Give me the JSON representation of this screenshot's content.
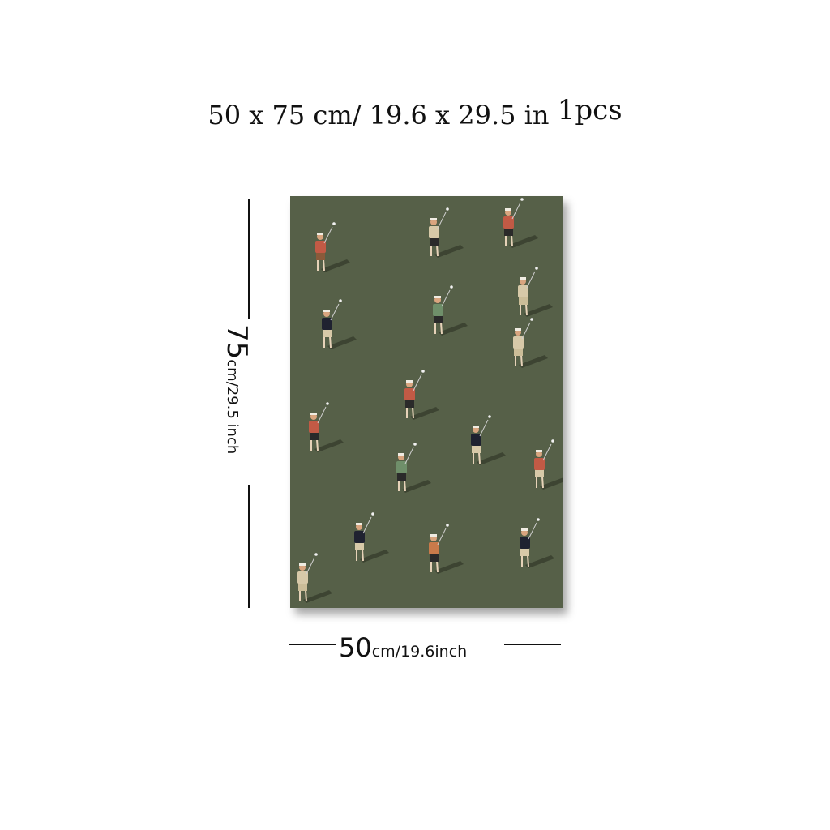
{
  "title": {
    "main": "50 x 75 cm/ 19.6 x 29.5 in",
    "count": "1",
    "unit": "pcs"
  },
  "dimensions": {
    "height_number": "75",
    "height_unit": "cm/29.5 inch",
    "width_number": "50",
    "width_unit": "cm/19.6inch"
  },
  "artwork": {
    "background_color": "#566048",
    "subject": "golfers-pattern",
    "golfers": [
      {
        "shirt": "#c25a45",
        "shorts": "#8a5a3a"
      },
      {
        "shirt": "#d7c9a8",
        "shorts": "#2a2a2a"
      },
      {
        "shirt": "#c25a45",
        "shorts": "#2a2a2a"
      },
      {
        "shirt": "#d7c9a8",
        "shorts": "#cbbd98"
      },
      {
        "shirt": "#6f8f6a",
        "shorts": "#2a2a2a"
      },
      {
        "shirt": "#1f2230",
        "shorts": "#d7c9a8"
      },
      {
        "shirt": "#d7c9a8",
        "shorts": "#cbbd98"
      },
      {
        "shirt": "#c25a45",
        "shorts": "#2a2a2a"
      },
      {
        "shirt": "#c25a45",
        "shorts": "#2a2a2a"
      },
      {
        "shirt": "#1f2230",
        "shorts": "#d7c9a8"
      },
      {
        "shirt": "#c25a45",
        "shorts": "#d7c9a8"
      },
      {
        "shirt": "#6f8f6a",
        "shorts": "#2a2a2a"
      },
      {
        "shirt": "#1f2230",
        "shorts": "#d7c9a8"
      },
      {
        "shirt": "#c97a4a",
        "shorts": "#2a2a2a"
      },
      {
        "shirt": "#1f2230",
        "shorts": "#d7c9a8"
      },
      {
        "shirt": "#d7c9a8",
        "shorts": "#cbbd98"
      }
    ]
  }
}
